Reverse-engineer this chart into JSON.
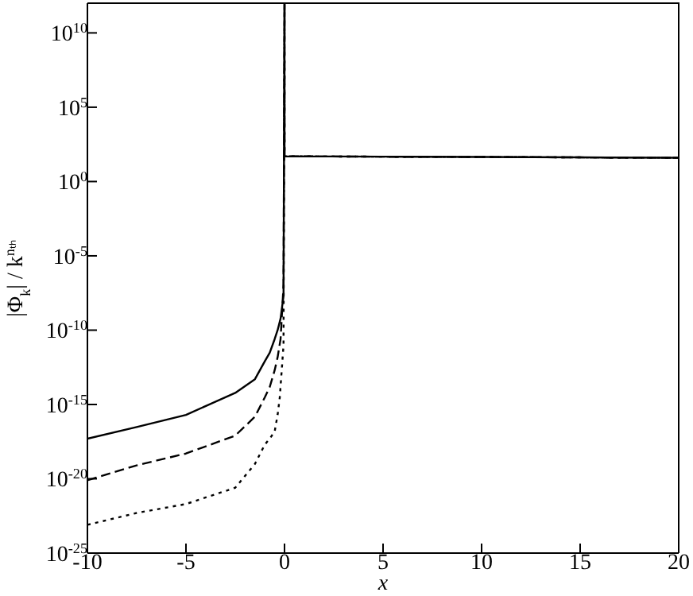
{
  "chart_data": {
    "type": "line",
    "xlabel": "x",
    "ylabel": "|Φ$_{k}$| / k$^{nₜₕ}$",
    "log": "y",
    "marker": "none",
    "xlim": [
      -10,
      20
    ],
    "xticks": [
      -10,
      -5,
      0,
      5,
      10,
      15,
      20
    ],
    "ylim": [
      1e-25,
      1000000000000.0
    ],
    "yticks": [
      {
        "value": 1e-25,
        "label": "10$^{-25}$"
      },
      {
        "value": 1e-20,
        "label": "10$^{-20}$"
      },
      {
        "value": 1e-15,
        "label": "10$^{-15}$"
      },
      {
        "value": 1e-10,
        "label": "10$^{-10}$"
      },
      {
        "value": 1e-05,
        "label": "10$^{-5}$"
      },
      {
        "value": 1,
        "label": "10$^{0}$"
      },
      {
        "value": 100000.0,
        "label": "10$^{5}$"
      },
      {
        "value": 10000000000.0,
        "label": "10$^{10}$"
      }
    ],
    "series": [
      {
        "color": "#000000",
        "line_style": "solid",
        "x": [
          -10,
          -7.5,
          -5,
          -2.5,
          -1.5,
          -1,
          -0.75,
          -0.5,
          -0.35,
          -0.2,
          -0.05,
          0,
          0,
          5,
          10,
          15,
          20
        ],
        "values": [
          5e-18,
          3e-17,
          2e-16,
          6e-15,
          5e-14,
          8e-13,
          3e-12,
          2.5e-11,
          1e-10,
          6e-10,
          2e-08,
          1000000000000.0,
          50,
          47,
          45,
          42,
          40
        ]
      },
      {
        "color": "#000000",
        "line_style": "dashed",
        "x": [
          -10,
          -7.5,
          -5,
          -2.5,
          -1.5,
          -1,
          -0.75,
          -0.5,
          -0.35,
          -0.2,
          -0.05,
          0,
          0,
          5,
          10,
          15,
          20
        ],
        "values": [
          8e-21,
          8e-20,
          5e-19,
          8e-18,
          1.5e-16,
          3e-15,
          1.5e-14,
          2e-13,
          1.5e-12,
          2.5e-11,
          1e-07,
          1000000000000.0,
          50,
          47,
          45,
          42,
          40
        ]
      },
      {
        "color": "#000000",
        "line_style": "dotted",
        "x": [
          -10,
          -7.5,
          -5,
          -2.5,
          -1.5,
          -1,
          -0.75,
          -0.5,
          -0.35,
          -0.24,
          -0.05,
          0,
          0,
          5,
          10,
          15,
          20
        ],
        "values": [
          8e-24,
          5e-23,
          2e-22,
          2.5e-21,
          1e-19,
          2e-18,
          5e-18,
          1.5e-17,
          2e-16,
          3e-15,
          1e-11,
          1000000000000.0,
          50,
          47,
          45,
          42,
          40
        ]
      }
    ]
  }
}
